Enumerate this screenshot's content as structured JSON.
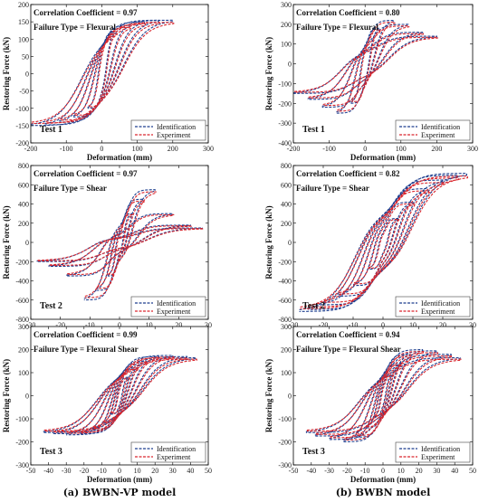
{
  "captions": [
    "(a) BWBN-VP model",
    "(b) BWBN model"
  ],
  "colors": {
    "identification": "#1f3f8f",
    "experiment": "#d9262d",
    "axis": "#000000"
  },
  "chart_data": [
    {
      "type": "line",
      "panel": "a-test1",
      "test_label": "Test 1",
      "correlation_label": "Correlation Coefficient =",
      "correlation_value": "0.97",
      "failure_label": "Failure Type =",
      "failure_value": "Flexural",
      "xlabel": "Deformation (mm)",
      "ylabel": "Restoring Force (kN)",
      "xlim": [
        -200,
        300
      ],
      "ylim": [
        -200,
        200
      ],
      "xticks": [
        -200,
        -100,
        0,
        100,
        200,
        300
      ],
      "yticks": [
        -200,
        -150,
        -100,
        -50,
        0,
        50,
        100,
        150,
        200
      ],
      "legend": "bottom-right",
      "series": [
        {
          "name": "Identification",
          "style": "dashed"
        },
        {
          "name": "Experiment",
          "style": "dashed"
        }
      ],
      "loops": {
        "xpeaks": [
          40,
          80,
          120,
          160,
          200
        ],
        "fpos": [
          120,
          140,
          150,
          155,
          155
        ],
        "fneg": [
          -100,
          -125,
          -140,
          -148,
          -150
        ],
        "pinch": 0.15
      }
    },
    {
      "type": "line",
      "panel": "b-test1",
      "test_label": "Test 1",
      "correlation_label": "Correlation Coefficient =",
      "correlation_value": "0.80",
      "failure_label": "Failure Type =",
      "failure_value": "Flexural",
      "xlabel": "Deformation (mm)",
      "ylabel": "Restoring Force (kN)",
      "xlim": [
        -200,
        300
      ],
      "ylim": [
        -400,
        300
      ],
      "xticks": [
        -200,
        -100,
        0,
        100,
        200,
        300
      ],
      "yticks": [
        -400,
        -300,
        -200,
        -100,
        0,
        100,
        200,
        300
      ],
      "legend": "bottom-right",
      "series": [
        {
          "name": "Identification",
          "style": "dashed"
        },
        {
          "name": "Experiment",
          "style": "dashed"
        }
      ],
      "loops": {
        "xpeaks": [
          40,
          80,
          120,
          160,
          200
        ],
        "fpos": [
          180,
          220,
          200,
          160,
          140
        ],
        "fneg": [
          -200,
          -250,
          -220,
          -180,
          -150
        ],
        "pinch": 0.3
      }
    },
    {
      "type": "line",
      "panel": "a-test2",
      "test_label": "Test 2",
      "correlation_label": "Correlation Coefficient =",
      "correlation_value": "0.97",
      "failure_label": "Failure Type =",
      "failure_value": "Shear",
      "xlabel": "Deformation (mm)",
      "ylabel": "Restoring Force (kN)",
      "xlim": [
        -30,
        30
      ],
      "ylim": [
        -800,
        800
      ],
      "xticks": [
        -30,
        -20,
        -10,
        0,
        10,
        20,
        30
      ],
      "yticks": [
        -800,
        -600,
        -400,
        -200,
        0,
        200,
        400,
        600,
        800
      ],
      "legend": "bottom-right",
      "series": [
        {
          "name": "Identification",
          "style": "dashed"
        },
        {
          "name": "Experiment",
          "style": "dashed"
        }
      ],
      "loops": {
        "xpeaks": [
          4,
          8,
          12,
          18,
          24,
          28
        ],
        "fpos": [
          300,
          450,
          550,
          300,
          180,
          150
        ],
        "fneg": [
          -350,
          -500,
          -600,
          -350,
          -250,
          -200
        ],
        "pinch": 0.5
      }
    },
    {
      "type": "line",
      "panel": "b-test2",
      "test_label": "Test 2",
      "correlation_label": "Correlation Coefficient =",
      "correlation_value": "0.82",
      "failure_label": "Failure Type =",
      "failure_value": "Shear",
      "xlabel": "Deformation (mm)",
      "ylabel": "Restoring Force (kN)",
      "xlim": [
        -30,
        30
      ],
      "ylim": [
        -800,
        800
      ],
      "xticks": [
        -30,
        -20,
        -10,
        0,
        10,
        20,
        30
      ],
      "yticks": [
        -800,
        -600,
        -400,
        -200,
        0,
        200,
        400,
        600,
        800
      ],
      "legend": "bottom-right",
      "series": [
        {
          "name": "Identification",
          "style": "dashed"
        },
        {
          "name": "Experiment",
          "style": "dashed"
        }
      ],
      "loops": {
        "xpeaks": [
          5,
          10,
          15,
          20,
          25,
          28
        ],
        "fpos": [
          250,
          420,
          560,
          650,
          700,
          720
        ],
        "fneg": [
          -280,
          -450,
          -560,
          -650,
          -700,
          -720
        ],
        "pinch": 0.35
      }
    },
    {
      "type": "line",
      "panel": "a-test3",
      "test_label": "Test 3",
      "correlation_label": "Correlation Coefficient =",
      "correlation_value": "0.99",
      "failure_label": "Failure Type =",
      "failure_value": "Flexural Shear",
      "xlabel": "Deformation (mm)",
      "ylabel": "Restoring Force (kN)",
      "xlim": [
        -50,
        50
      ],
      "ylim": [
        -300,
        300
      ],
      "xticks": [
        -50,
        -40,
        -30,
        -20,
        -10,
        0,
        10,
        20,
        30,
        40,
        50
      ],
      "yticks": [
        -300,
        -200,
        -100,
        0,
        100,
        200,
        300
      ],
      "legend": "bottom-right",
      "series": [
        {
          "name": "Identification",
          "style": "dashed"
        },
        {
          "name": "Experiment",
          "style": "dashed"
        }
      ],
      "loops": {
        "xpeaks": [
          5,
          10,
          15,
          22,
          30,
          38,
          43
        ],
        "fpos": [
          80,
          120,
          150,
          170,
          175,
          170,
          165
        ],
        "fneg": [
          -80,
          -120,
          -150,
          -165,
          -170,
          -165,
          -160
        ],
        "pinch": 0.2
      }
    },
    {
      "type": "line",
      "panel": "b-test3",
      "test_label": "Test 3",
      "correlation_label": "Correlation Coefficient =",
      "correlation_value": "0.94",
      "failure_label": "Failure Type =",
      "failure_value": "Flexural Shear",
      "xlabel": "Deformation (mm)",
      "ylabel": "Restoring Force (kN)",
      "xlim": [
        -50,
        50
      ],
      "ylim": [
        -300,
        300
      ],
      "xticks": [
        -50,
        -40,
        -30,
        -20,
        -10,
        0,
        10,
        20,
        30,
        40,
        50
      ],
      "yticks": [
        -300,
        -200,
        -100,
        0,
        100,
        200,
        300
      ],
      "legend": "bottom-right",
      "series": [
        {
          "name": "Identification",
          "style": "dashed"
        },
        {
          "name": "Experiment",
          "style": "dashed"
        }
      ],
      "loops": {
        "xpeaks": [
          5,
          10,
          15,
          22,
          30,
          38,
          43
        ],
        "fpos": [
          90,
          140,
          180,
          200,
          195,
          180,
          165
        ],
        "fneg": [
          -90,
          -140,
          -180,
          -200,
          -190,
          -175,
          -160
        ],
        "pinch": 0.25
      }
    }
  ]
}
